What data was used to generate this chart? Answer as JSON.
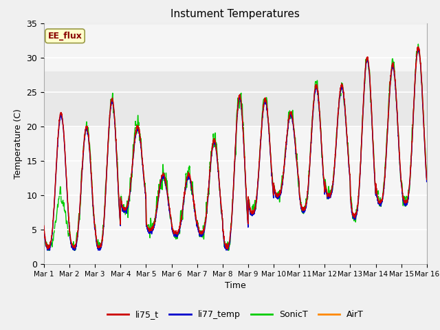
{
  "title": "Instument Temperatures",
  "xlabel": "Time",
  "ylabel": "Temperature (C)",
  "ylim": [
    0,
    35
  ],
  "xlim": [
    0,
    15
  ],
  "x_tick_labels": [
    "Mar 1",
    "Mar 2",
    "Mar 3",
    "Mar 4",
    "Mar 5",
    "Mar 6",
    "Mar 7",
    "Mar 8",
    "Mar 9",
    "Mar 10",
    "Mar 11",
    "Mar 12",
    "Mar 13",
    "Mar 14",
    "Mar 15",
    "Mar 16"
  ],
  "shaded_band": [
    20,
    28
  ],
  "shaded_color": "#e8e8e8",
  "colors": {
    "li75_t": "#cc0000",
    "li77_temp": "#0000cc",
    "SonicT": "#00cc00",
    "AirT": "#ff8800"
  },
  "annotation_text": "EE_flux",
  "annotation_color": "#880000",
  "annotation_bg": "#ffffcc",
  "annotation_border": "#999944",
  "background_color": "#f0f0f0",
  "plot_bg": "#f5f5f5",
  "grid_color": "#ffffff",
  "day_peaks": [
    22,
    20,
    24,
    20,
    13,
    13,
    18,
    24.5,
    24,
    22,
    26,
    26,
    30,
    29,
    31.5
  ],
  "day_lows": [
    2.5,
    2.5,
    2.5,
    8,
    5,
    4.5,
    4.5,
    2.5,
    7.5,
    10,
    8,
    10,
    7,
    9,
    9
  ]
}
